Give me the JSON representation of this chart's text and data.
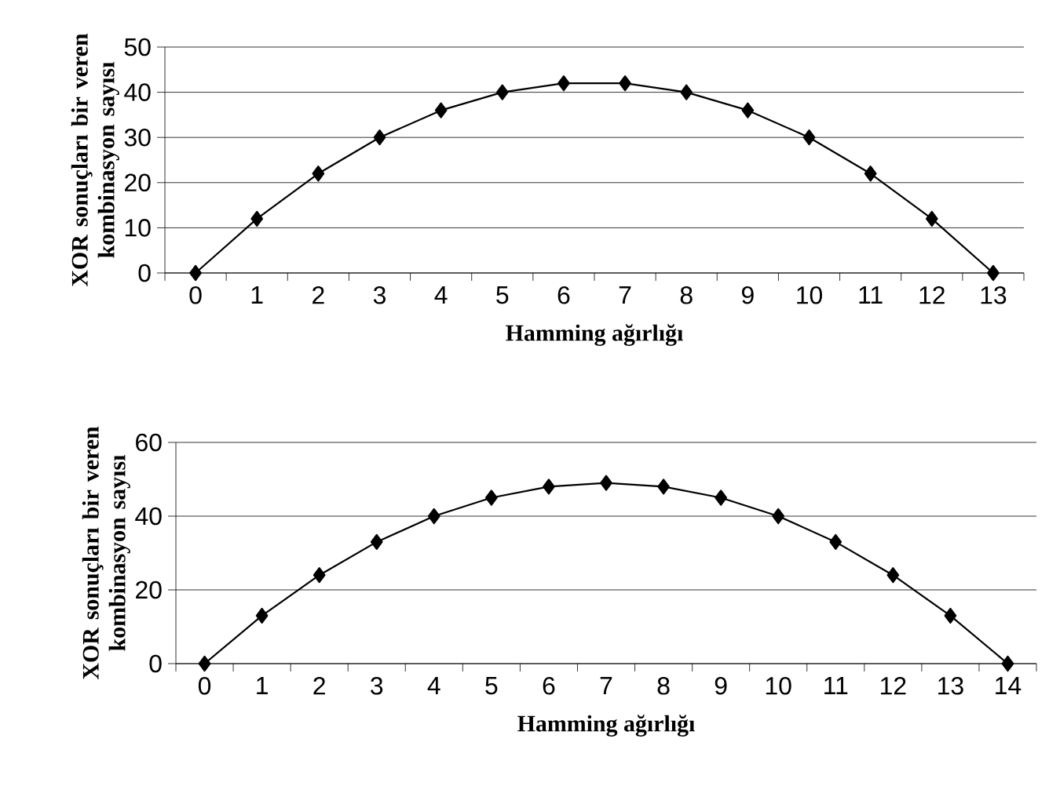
{
  "chart_data": [
    {
      "type": "line",
      "categories": [
        "0",
        "1",
        "2",
        "3",
        "4",
        "5",
        "6",
        "7",
        "8",
        "9",
        "10",
        "11",
        "12",
        "13"
      ],
      "values": [
        0,
        12,
        22,
        30,
        36,
        40,
        42,
        42,
        40,
        36,
        30,
        22,
        12,
        0
      ],
      "color": "#000000",
      "ylim": [
        0,
        50
      ],
      "yticks": [
        0,
        10,
        20,
        30,
        40,
        50
      ],
      "grid": "y",
      "marker": "diamond",
      "line_style": "solid",
      "xlabel": "Hamming ağırlığı",
      "ylabel": "XOR sonuçları bir veren kombinasyon sayısı"
    },
    {
      "type": "line",
      "categories": [
        "0",
        "1",
        "2",
        "3",
        "4",
        "5",
        "6",
        "7",
        "8",
        "9",
        "10",
        "11",
        "12",
        "13",
        "14"
      ],
      "values": [
        0,
        13,
        24,
        33,
        40,
        45,
        48,
        49,
        48,
        45,
        40,
        33,
        24,
        13,
        0
      ],
      "color": "#000000",
      "ylim": [
        0,
        60
      ],
      "yticks": [
        0,
        20,
        40,
        60
      ],
      "grid": "y",
      "marker": "diamond",
      "line_style": "solid",
      "xlabel": "Hamming ağırlığı",
      "ylabel": "XOR sonuçları bir veren kombinasyon sayısı"
    }
  ]
}
